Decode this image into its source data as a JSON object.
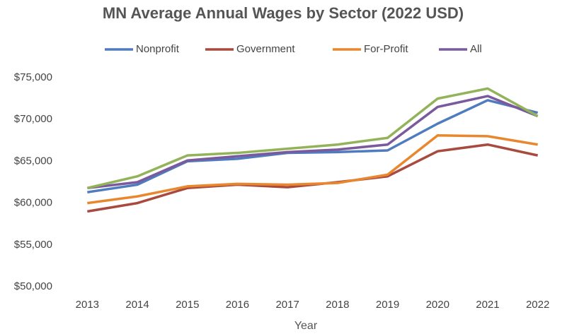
{
  "chart_data": {
    "type": "line",
    "title": "MN Average Annual Wages by Sector (2022 USD)",
    "x_label": "Year",
    "categories": [
      "2013",
      "2014",
      "2015",
      "2016",
      "2017",
      "2018",
      "2019",
      "2020",
      "2021",
      "2022"
    ],
    "series": [
      {
        "name": "Nonprofit",
        "color": "#4f7bbf",
        "values": [
          61300,
          62200,
          65000,
          65300,
          66000,
          66100,
          66300,
          69500,
          72300,
          70800
        ]
      },
      {
        "name": "Government",
        "color": "#a94a3f",
        "values": [
          59000,
          60000,
          61800,
          62200,
          61900,
          62500,
          63200,
          66200,
          67000,
          65700
        ]
      },
      {
        "name": "For-Profit",
        "color": "#e9872e",
        "values": [
          60000,
          60800,
          62000,
          62300,
          62200,
          62400,
          63400,
          68100,
          68000,
          67000
        ]
      },
      {
        "name": "All",
        "color": "#7a5a9c",
        "values": [
          61800,
          62500,
          65100,
          65600,
          66100,
          66400,
          67000,
          71500,
          72800,
          70400
        ]
      },
      {
        "color": "#93b35a",
        "values": [
          61800,
          63200,
          65700,
          66000,
          66500,
          67000,
          67800,
          72500,
          73700,
          70400
        ]
      }
    ],
    "ylim": [
      50000,
      75000
    ],
    "yticks": [
      {
        "value": 50000,
        "label": "$50,000"
      },
      {
        "value": 55000,
        "label": "$55,000"
      },
      {
        "value": 60000,
        "label": "$60,000"
      },
      {
        "value": 65000,
        "label": "$65,000"
      },
      {
        "value": 70000,
        "label": "$70,000"
      },
      {
        "value": 75000,
        "label": "$75,000"
      }
    ],
    "grid": false,
    "legend": "top"
  }
}
